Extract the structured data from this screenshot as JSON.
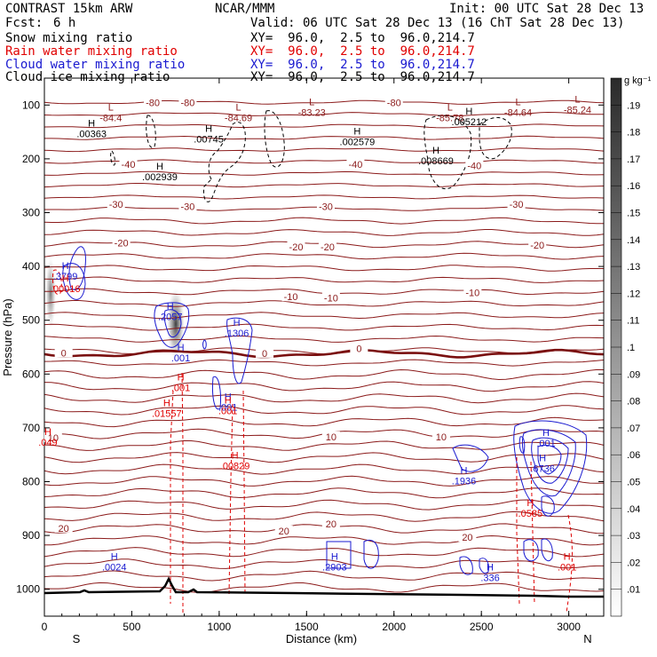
{
  "header": {
    "model": "CONTRAST 15km ARW",
    "center": "NCAR/MMM",
    "init": "Init: 00 UTC Sat 28 Dec 13",
    "fcst_label": "Fcst:",
    "fcst_value": "6 h",
    "valid": "Valid: 06 UTC Sat 28 Dec 13 (16 ChT Sat 28 Dec 13)",
    "fields": [
      {
        "name": "Snow mixing ratio",
        "xy": "XY=  96.0,  2.5 to  96.0,214.7",
        "color": "#000000"
      },
      {
        "name": "Rain water mixing ratio",
        "xy": "XY=  96.0,  2.5 to  96.0,214.7",
        "color": "#e00000"
      },
      {
        "name": "Cloud water mixing ratio",
        "xy": "XY=  96.0,  2.5 to  96.0,214.7",
        "color": "#1a1ad0"
      },
      {
        "name": "Cloud ice mixing ratio",
        "xy": "XY=  96.0,  2.5 to  96.0,214.7",
        "color": "#000000"
      }
    ]
  },
  "chart_data": {
    "type": "contour-cross-section",
    "xlabel": "Distance (km)",
    "ylabel": "Pressure (hPa)",
    "x_ticks": [
      0,
      500,
      1000,
      1500,
      2000,
      2500,
      3000
    ],
    "y_ticks": [
      100,
      200,
      300,
      400,
      500,
      600,
      700,
      800,
      900,
      1000
    ],
    "xlim": [
      0,
      3200
    ],
    "ylim": [
      1050,
      50
    ],
    "x_end_labels": {
      "left": "S",
      "right": "N"
    },
    "colorbar": {
      "unit": "g kg⁻¹",
      "labels": [
        ".19",
        ".18",
        ".17",
        ".16",
        ".15",
        ".14",
        ".13",
        ".12",
        ".11",
        ".1",
        ".09",
        ".08",
        ".07",
        ".06",
        ".05",
        ".04",
        ".03",
        ".02",
        ".01"
      ]
    },
    "temperature_contours": [
      {
        "label": "-80",
        "p": 100
      },
      {
        "label": "-40",
        "p": 215
      },
      {
        "label": "-30",
        "p": 290
      },
      {
        "label": "-20",
        "p": 365
      },
      {
        "label": "-10",
        "p": 465
      },
      {
        "label": "0",
        "p": 562
      },
      {
        "label": "10",
        "p": 720
      },
      {
        "label": "20",
        "p": 900
      }
    ],
    "temperature_labels": [
      {
        "text": "-80",
        "x": 620,
        "p": 97
      },
      {
        "text": "-80",
        "x": 820,
        "p": 97
      },
      {
        "text": "-80",
        "x": 2000,
        "p": 97
      },
      {
        "text": "-40",
        "x": 480,
        "p": 212
      },
      {
        "text": "-40",
        "x": 1780,
        "p": 212
      },
      {
        "text": "-40",
        "x": 2460,
        "p": 214
      },
      {
        "text": "-30",
        "x": 410,
        "p": 286
      },
      {
        "text": "-30",
        "x": 820,
        "p": 290
      },
      {
        "text": "-30",
        "x": 1610,
        "p": 290
      },
      {
        "text": "-30",
        "x": 2700,
        "p": 286
      },
      {
        "text": "-20",
        "x": 440,
        "p": 358
      },
      {
        "text": "-20",
        "x": 1440,
        "p": 365
      },
      {
        "text": "-20",
        "x": 1620,
        "p": 365
      },
      {
        "text": "-20",
        "x": 2820,
        "p": 362
      },
      {
        "text": "-10",
        "x": 1410,
        "p": 458
      },
      {
        "text": "-10",
        "x": 1640,
        "p": 460
      },
      {
        "text": "-10",
        "x": 2450,
        "p": 450
      },
      {
        "text": "0",
        "x": 110,
        "p": 562
      },
      {
        "text": "0",
        "x": 1260,
        "p": 563
      },
      {
        "text": "0",
        "x": 1800,
        "p": 554
      },
      {
        "text": "10",
        "x": 50,
        "p": 720
      },
      {
        "text": "10",
        "x": 1640,
        "p": 718
      },
      {
        "text": "10",
        "x": 2270,
        "p": 718
      },
      {
        "text": "20",
        "x": 110,
        "p": 888
      },
      {
        "text": "20",
        "x": 1370,
        "p": 893
      },
      {
        "text": "20",
        "x": 1640,
        "p": 880
      },
      {
        "text": "20",
        "x": 2420,
        "p": 905
      }
    ],
    "extrema": [
      {
        "type": "L",
        "value": "-84.4",
        "x": 380,
        "p": 110,
        "color": "#8b1a1a"
      },
      {
        "type": "L",
        "value": "-84.69",
        "x": 1110,
        "p": 110,
        "color": "#8b1a1a"
      },
      {
        "type": "L",
        "value": "-83.23",
        "x": 1530,
        "p": 100,
        "color": "#8b1a1a"
      },
      {
        "type": "L",
        "value": "-85.78",
        "x": 2320,
        "p": 110,
        "color": "#8b1a1a"
      },
      {
        "type": "L",
        "value": "-84.64",
        "x": 2710,
        "p": 100,
        "color": "#8b1a1a"
      },
      {
        "type": "L",
        "value": "-85.24",
        "x": 3050,
        "p": 95,
        "color": "#8b1a1a"
      },
      {
        "type": "H",
        "value": ".00363",
        "x": 270,
        "p": 140,
        "color": "#000000"
      },
      {
        "type": "H",
        "value": ".00745",
        "x": 940,
        "p": 150,
        "color": "#000000"
      },
      {
        "type": "H",
        "value": ".002579",
        "x": 1790,
        "p": 155,
        "color": "#000000"
      },
      {
        "type": "H",
        "value": ".005212",
        "x": 2430,
        "p": 118,
        "color": "#000000"
      },
      {
        "type": "H",
        "value": ".008669",
        "x": 2240,
        "p": 190,
        "color": "#000000"
      },
      {
        "type": "H",
        "value": ".002939",
        "x": 660,
        "p": 220,
        "color": "#000000"
      },
      {
        "type": "H",
        "value": ".3799",
        "x": 120,
        "p": 405,
        "color": "#1a1ad0"
      },
      {
        "type": "H",
        "value": ".00016",
        "x": 120,
        "p": 428,
        "color": "#e00000"
      },
      {
        "type": "H",
        "value": ".2057",
        "x": 720,
        "p": 480,
        "color": "#1a1ad0"
      },
      {
        "type": "H",
        "value": ".1306",
        "x": 1100,
        "p": 510,
        "color": "#1a1ad0"
      },
      {
        "type": "H",
        "value": ".001",
        "x": 780,
        "p": 557,
        "color": "#1a1ad0"
      },
      {
        "type": "H",
        "value": ".001",
        "x": 780,
        "p": 612,
        "color": "#e00000"
      },
      {
        "type": "H",
        "value": ".001",
        "x": 1050,
        "p": 648,
        "color": "#1a1ad0"
      },
      {
        "type": "H",
        "value": ".001",
        "x": 1050,
        "p": 655,
        "color": "#e00000"
      },
      {
        "type": "H",
        "value": ".01557",
        "x": 700,
        "p": 660,
        "color": "#e00000"
      },
      {
        "type": "H",
        "value": ".00829",
        "x": 1090,
        "p": 757,
        "color": "#e00000"
      },
      {
        "type": "H",
        "value": ".049",
        "x": 20,
        "p": 713,
        "color": "#e00000"
      },
      {
        "type": "H",
        "value": ".001",
        "x": 2870,
        "p": 715,
        "color": "#1a1ad0"
      },
      {
        "type": "H",
        "value": ".6736",
        "x": 2850,
        "p": 762,
        "color": "#1a1ad0"
      },
      {
        "type": "H",
        "value": ".1936",
        "x": 2400,
        "p": 785,
        "color": "#1a1ad0"
      },
      {
        "type": "H",
        "value": ".0585",
        "x": 2780,
        "p": 845,
        "color": "#e00000"
      },
      {
        "type": "H",
        "value": ".0024",
        "x": 400,
        "p": 945,
        "color": "#1a1ad0"
      },
      {
        "type": "H",
        "value": ".2903",
        "x": 1660,
        "p": 945,
        "color": "#1a1ad0"
      },
      {
        "type": "H",
        "value": ".336",
        "x": 2550,
        "p": 965,
        "color": "#1a1ad0"
      },
      {
        "type": "H",
        "value": ".001",
        "x": 2990,
        "p": 945,
        "color": "#e00000"
      }
    ]
  }
}
